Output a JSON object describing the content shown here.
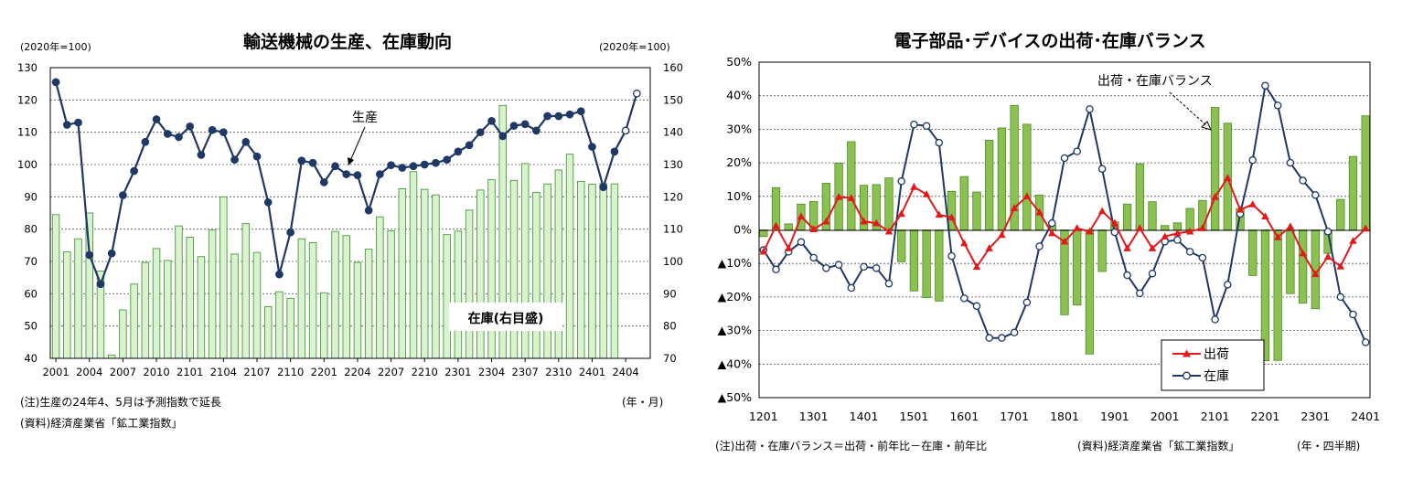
{
  "left_notes": {
    "note1": "(注)生産の24年4、5月は予測指数で延長",
    "note2": "(資料)経済産業省「鉱工業指数」"
  },
  "right_notes": {
    "note1": "(注)出荷・在庫バランス＝出荷・前年比－在庫・前年比",
    "note2": "(資料)経済産業省「鉱工業指数」",
    "note3": "(年・四半期)"
  },
  "colors": {
    "production_line": "#1f3864",
    "inventory_bar_fill": "#d9f2d0",
    "inventory_bar_stroke": "#4a9a3a",
    "balance_bar_fill": "#8cc152",
    "balance_bar_stroke": "#4a8a28",
    "shipment_line": "#e31a1c",
    "inventory_line": "#1f3864"
  },
  "chart_data": [
    {
      "id": "left",
      "type": "bar+line",
      "title": "輸送機械の生産、在庫動向",
      "ylabel_left": "(2020年=100)",
      "ylabel_right": "(2020年=100)",
      "xunit": "(年・月)",
      "ylim_left": [
        40,
        130
      ],
      "ylim_right": [
        70,
        160
      ],
      "yticks_left": [
        40,
        50,
        60,
        70,
        80,
        90,
        100,
        110,
        120,
        130
      ],
      "yticks_right": [
        70,
        80,
        90,
        100,
        110,
        120,
        130,
        140,
        150,
        160
      ],
      "xtick_labels": [
        "2001",
        "2004",
        "2007",
        "2010",
        "2101",
        "2104",
        "2107",
        "2110",
        "2201",
        "2204",
        "2207",
        "2210",
        "2301",
        "2304",
        "2307",
        "2310",
        "2401",
        "2404"
      ],
      "grid": "horizontal dashed",
      "annotations": [
        "生産",
        "在庫(右目盛)"
      ],
      "series": [
        {
          "name": "生産",
          "axis": "left",
          "style": "line-markers",
          "forecast_points": 2,
          "values": [
            125.5,
            112.3,
            113.0,
            72.0,
            63.0,
            72.5,
            90.5,
            98.0,
            107.0,
            114.0,
            109.5,
            108.5,
            111.8,
            103.0,
            110.7,
            110.0,
            101.5,
            107.0,
            102.5,
            88.3,
            66.0,
            79.0,
            101.2,
            100.5,
            94.5,
            99.5,
            97.0,
            96.7,
            85.8,
            97.0,
            99.8,
            99.0,
            99.5,
            100.0,
            100.5,
            101.5,
            104.0,
            106.0,
            110.0,
            113.5,
            108.8,
            112.0,
            112.5,
            110.5,
            115.0,
            115.0,
            115.5,
            116.5,
            105.5,
            93.0,
            104.0,
            110.5,
            122.0
          ]
        },
        {
          "name": "在庫",
          "axis": "right",
          "style": "bar",
          "values": [
            114.5,
            103.0,
            107.0,
            115.0,
            97.0,
            71.0,
            85.0,
            93.0,
            99.7,
            104.0,
            100.3,
            111.0,
            107.5,
            101.5,
            109.7,
            120.0,
            102.3,
            111.7,
            102.8,
            86.0,
            90.6,
            88.6,
            107.0,
            105.8,
            90.3,
            109.3,
            108.0,
            99.7,
            103.8,
            113.8,
            109.5,
            122.5,
            127.8,
            122.3,
            120.6,
            108.3,
            109.4,
            115.9,
            122.1,
            125.3,
            148.3,
            125.1,
            130.3,
            121.4,
            124.0,
            128.3,
            133.2,
            124.8,
            123.9,
            124.1,
            124.0
          ]
        }
      ]
    },
    {
      "id": "right",
      "type": "bar+line",
      "title": "電子部品･デバイスの出荷･在庫バランス",
      "xunit": "(年・四半期)",
      "ylim": [
        -50,
        50
      ],
      "ytick_labels": [
        "50%",
        "40%",
        "30%",
        "20%",
        "10%",
        "0%",
        "▲10%",
        "▲20%",
        "▲30%",
        "▲40%",
        "▲50%"
      ],
      "xtick_labels": [
        "1201",
        "1301",
        "1401",
        "1501",
        "1601",
        "1701",
        "1801",
        "1901",
        "2001",
        "2101",
        "2201",
        "2301",
        "2401"
      ],
      "grid": "horizontal dashed",
      "annotations": [
        "出荷・在庫バランス"
      ],
      "legend": {
        "position": "bottom-center",
        "entries": [
          "出荷",
          "在庫"
        ]
      },
      "series": [
        {
          "name": "出荷・在庫バランス",
          "style": "bar",
          "values": [
            -2.0,
            12.6,
            1.8,
            7.7,
            8.5,
            13.9,
            19.9,
            26.3,
            13.3,
            13.5,
            15.5,
            -9.5,
            -18.2,
            -20.2,
            -21.2,
            11.5,
            15.9,
            11.3,
            26.7,
            30.4,
            37.1,
            31.5,
            10.4,
            1.4,
            -25.3,
            -22.4,
            -37.0,
            -12.4,
            2.4,
            7.7,
            19.7,
            8.4,
            1.3,
            2.1,
            6.4,
            8.8,
            36.5,
            31.8,
            6.4,
            -13.6,
            -39.0,
            -38.9,
            -19.0,
            -21.8,
            -23.5,
            -7.0,
            9.1,
            21.9,
            34.0
          ]
        },
        {
          "name": "出荷",
          "style": "line-triangle",
          "values": [
            -6.5,
            1.2,
            -5.5,
            4.0,
            0.2,
            2.5,
            9.8,
            9.5,
            2.5,
            2.0,
            -0.5,
            4.8,
            12.8,
            10.6,
            4.5,
            3.7,
            -4.0,
            -11.0,
            -5.5,
            -1.5,
            6.5,
            10.0,
            5.2,
            -1.0,
            -3.5,
            0.5,
            -0.5,
            5.6,
            2.0,
            -5.5,
            0.5,
            -5.5,
            -2.0,
            -1.0,
            -0.5,
            0.5,
            9.8,
            15.5,
            6.0,
            7.6,
            4.0,
            -2.2,
            1.0,
            -7.0,
            -13.2,
            -8.0,
            -10.9,
            -3.3,
            0.4
          ]
        },
        {
          "name": "在庫",
          "style": "line-circle",
          "values": [
            -6.0,
            -11.8,
            -6.5,
            -3.6,
            -8.3,
            -11.4,
            -10.4,
            -17.3,
            -11.0,
            -11.4,
            -16.0,
            14.5,
            31.4,
            31.0,
            26.0,
            -7.8,
            -20.4,
            -22.7,
            -32.2,
            -32.2,
            -30.6,
            -21.6,
            -4.9,
            2.0,
            21.4,
            23.4,
            36.0,
            18.2,
            -0.7,
            -13.5,
            -18.9,
            -13.0,
            -3.5,
            -3.0,
            -6.5,
            -8.3,
            -26.7,
            -16.3,
            4.8,
            20.8,
            43.0,
            37.1,
            20.0,
            14.7,
            10.4,
            -0.5,
            -20.0,
            -25.2,
            -33.5
          ]
        }
      ]
    }
  ]
}
